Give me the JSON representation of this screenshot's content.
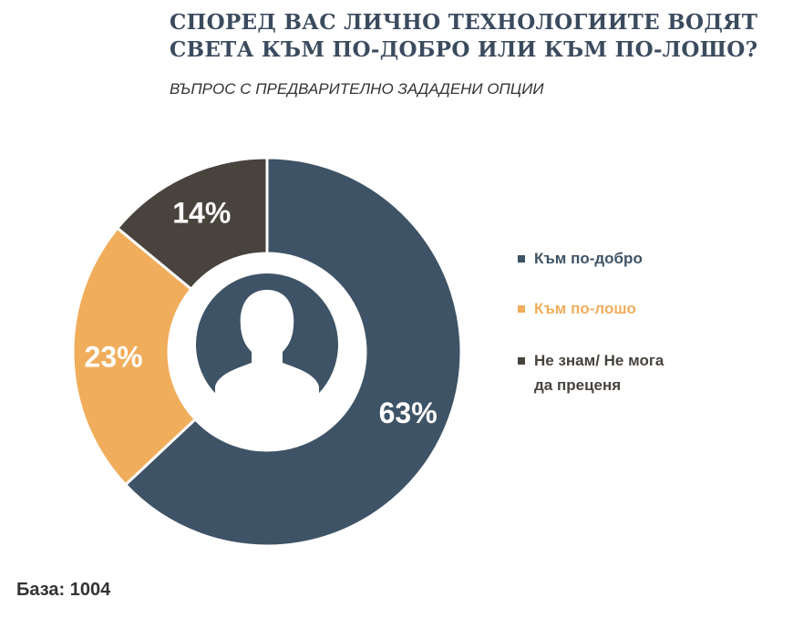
{
  "title_line1": "СПОРЕД ВАС ЛИЧНО ТЕХНОЛОГИИТЕ ВОДЯТ",
  "title_line2": "СВЕТА КЪМ ПО-ДОБРО ИЛИ КЪМ ПО-ЛОШО?",
  "subtitle": "ВЪПРОС С ПРЕДВАРИТЕЛНО ЗАДАДЕНИ ОПЦИИ",
  "base_label": "База: 1004",
  "center_icon": "person-silhouette-icon",
  "chart_data": {
    "type": "pie",
    "donut": true,
    "start": "top, clockwise",
    "slices": [
      {
        "label": "Към по-добро",
        "value": 63,
        "value_label": "63%",
        "color": "#3e5366"
      },
      {
        "label": "Към по-лошо",
        "value": 23,
        "value_label": "23%",
        "color": "#f0ad5b"
      },
      {
        "label_lines": [
          "Не знам/ Не мога",
          "да преценя"
        ],
        "value": 14,
        "value_label": "14%",
        "color": "#48433d"
      }
    ],
    "legend_position": "right"
  }
}
